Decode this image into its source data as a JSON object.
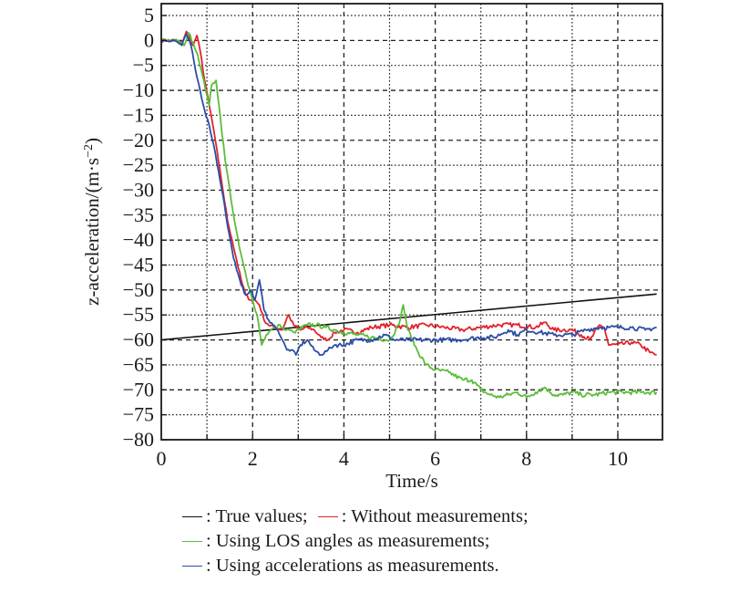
{
  "chart_data": {
    "type": "line",
    "title": "",
    "xlabel": "Time/s",
    "ylabel": "z-acceleration/(m·s⁻²)",
    "ylabel_parts": {
      "main": "z-acceleration/(m·s",
      "sup": "−2",
      "close": ")"
    },
    "xlim": [
      0,
      11
    ],
    "ylim": [
      -80,
      5
    ],
    "xticks": [
      0,
      2,
      4,
      6,
      8,
      10
    ],
    "xtick_labels": [
      "0",
      "2",
      "4",
      "6",
      "8",
      "10"
    ],
    "yticks": [
      5,
      0,
      -5,
      -10,
      -15,
      -20,
      -25,
      -30,
      -35,
      -40,
      -45,
      -50,
      -55,
      -60,
      -65,
      -70,
      -75,
      -80
    ],
    "ytick_labels": [
      "5",
      "0",
      "−5",
      "−10",
      "−15",
      "−20",
      "−25",
      "−30",
      "−35",
      "−40",
      "−45",
      "−50",
      "−55",
      "−60",
      "−65",
      "−70",
      "−75",
      "−80"
    ],
    "grid": true,
    "legend_position": "bottom",
    "series": [
      {
        "name": "True values",
        "color": "#111111",
        "x": [
          0,
          10.85
        ],
        "y": [
          -60,
          -50.8
        ]
      },
      {
        "name": "Without measurements",
        "color": "#e0242b",
        "x": [
          0,
          0.3,
          0.45,
          0.55,
          0.62,
          0.7,
          0.78,
          0.85,
          0.95,
          1.05,
          1.15,
          1.25,
          1.35,
          1.45,
          1.55,
          1.65,
          1.75,
          1.85,
          1.95,
          2.05,
          2.15,
          2.25,
          2.35,
          2.5,
          2.65,
          2.78,
          2.9,
          3.05,
          3.2,
          3.35,
          3.5,
          3.65,
          3.8,
          4.0,
          4.3,
          4.6,
          5.0,
          5.4,
          5.8,
          6.2,
          6.6,
          7.0,
          7.4,
          7.8,
          8.2,
          8.4,
          8.6,
          8.8,
          9.0,
          9.2,
          9.4,
          9.6,
          9.7,
          9.8,
          10.0,
          10.3,
          10.5,
          10.7,
          10.85
        ],
        "y": [
          0,
          0,
          -0.5,
          1.8,
          0.5,
          -1,
          1,
          -2,
          -8,
          -13,
          -18,
          -24,
          -30,
          -36,
          -40,
          -44,
          -48,
          -51,
          -52,
          -52,
          -53,
          -56,
          -57,
          -57.5,
          -58,
          -55,
          -57,
          -58,
          -57.5,
          -58,
          -59.5,
          -60,
          -58.5,
          -58,
          -58.5,
          -57.5,
          -57,
          -57.5,
          -57,
          -57.5,
          -58,
          -57.5,
          -57,
          -57,
          -57.5,
          -56.5,
          -58,
          -58,
          -58,
          -59,
          -60,
          -57,
          -57.5,
          -61,
          -61,
          -60.5,
          -61,
          -62.5,
          -63
        ]
      },
      {
        "name": "Using LOS angles as measurements",
        "color": "#5bbd3a",
        "x": [
          0,
          0.35,
          0.5,
          0.6,
          0.7,
          0.8,
          0.9,
          1.0,
          1.05,
          1.1,
          1.2,
          1.3,
          1.4,
          1.5,
          1.6,
          1.7,
          1.8,
          1.9,
          2.0,
          2.1,
          2.2,
          2.3,
          2.4,
          2.5,
          2.6,
          2.7,
          2.8,
          2.9,
          3.0,
          3.2,
          3.4,
          3.6,
          3.8,
          4.0,
          4.3,
          4.6,
          5.0,
          5.2,
          5.3,
          5.4,
          5.6,
          5.8,
          6.0,
          6.3,
          6.6,
          6.8,
          7.0,
          7.2,
          7.4,
          7.6,
          7.8,
          8.0,
          8.2,
          8.4,
          8.6,
          8.8,
          9.0,
          9.2,
          9.5,
          9.8,
          10.2,
          10.5,
          10.85
        ],
        "y": [
          0,
          0,
          -1,
          1.5,
          -0.5,
          -3,
          -7,
          -11,
          -13,
          -9,
          -8,
          -16,
          -24,
          -30,
          -36,
          -41,
          -45,
          -49,
          -52,
          -55,
          -61,
          -59,
          -58,
          -57.5,
          -57,
          -58,
          -58,
          -58.5,
          -58,
          -57,
          -57,
          -57.5,
          -58,
          -58.5,
          -59,
          -59.5,
          -60,
          -57,
          -53,
          -58,
          -62,
          -65,
          -66,
          -66.5,
          -68,
          -68,
          -70,
          -71,
          -71.5,
          -71,
          -70.5,
          -71.5,
          -70.5,
          -69.5,
          -71,
          -71,
          -70.5,
          -71,
          -71,
          -70.5,
          -70.5,
          -70.5,
          -70.5
        ]
      },
      {
        "name": "Using accelerations as measurements",
        "color": "#2a4da6",
        "x": [
          0,
          0.3,
          0.45,
          0.55,
          0.65,
          0.75,
          0.85,
          0.95,
          1.05,
          1.15,
          1.25,
          1.35,
          1.45,
          1.55,
          1.65,
          1.75,
          1.85,
          1.95,
          2.05,
          2.15,
          2.25,
          2.35,
          2.45,
          2.55,
          2.65,
          2.75,
          2.85,
          2.95,
          3.05,
          3.2,
          3.35,
          3.5,
          3.65,
          3.8,
          4.0,
          4.3,
          4.6,
          4.9,
          5.1,
          5.5,
          6.0,
          6.5,
          7.0,
          7.3,
          7.6,
          7.8,
          8.0,
          8.3,
          8.6,
          9.0,
          9.3,
          9.6,
          9.8,
          10.0,
          10.3,
          10.6,
          10.85
        ],
        "y": [
          0,
          0,
          -1,
          1.2,
          -1,
          -6,
          -10,
          -14,
          -17,
          -21,
          -26,
          -31,
          -37,
          -42,
          -46,
          -49,
          -51,
          -50,
          -52,
          -48,
          -54,
          -56,
          -57,
          -58,
          -60,
          -62,
          -62,
          -63,
          -61,
          -60,
          -62,
          -63,
          -62,
          -61,
          -61,
          -60,
          -60,
          -59,
          -60,
          -60,
          -60,
          -60,
          -59.5,
          -59.5,
          -58,
          -59,
          -58,
          -58.5,
          -59,
          -59,
          -58,
          -57.5,
          -57.5,
          -57.5,
          -57.5,
          -58,
          -57.5
        ]
      }
    ],
    "legend": [
      {
        "label": ": True values;",
        "color": "#111111"
      },
      {
        "label": ": Without measurements;",
        "color": "#e0242b"
      },
      {
        "label": ": Using LOS angles as measurements;",
        "color": "#5bbd3a"
      },
      {
        "label": ": Using accelerations as measurements.",
        "color": "#2a4da6"
      }
    ]
  }
}
